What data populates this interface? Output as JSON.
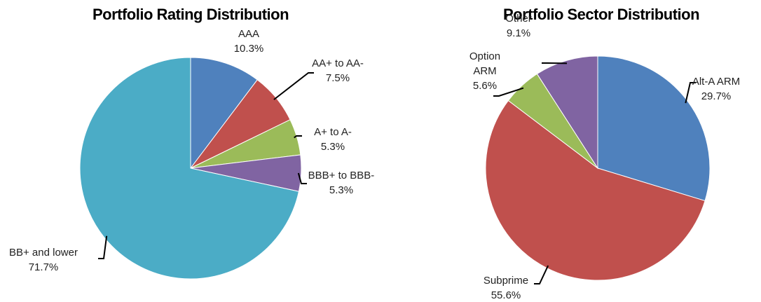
{
  "chart_data": [
    {
      "type": "pie",
      "title": "Portfolio Rating Distribution",
      "categories": [
        "AAA",
        "AA+ to AA-",
        "A+ to A-",
        "BBB+ to BBB-",
        "BB+ and lower"
      ],
      "values": [
        10.3,
        7.5,
        5.3,
        5.3,
        71.7
      ],
      "value_labels": [
        "10.3%",
        "7.5%",
        "5.3%",
        "5.3%",
        "71.7%"
      ],
      "colors": [
        "#4f81bd",
        "#c0504d",
        "#9bbb59",
        "#8064a2",
        "#4bacc6"
      ]
    },
    {
      "type": "pie",
      "title": "Portfolio Sector Distribution",
      "categories": [
        "Alt-A ARM",
        "Subprime",
        "Option ARM",
        "Other"
      ],
      "values": [
        29.7,
        55.6,
        5.6,
        9.1
      ],
      "value_labels": [
        "29.7%",
        "55.6%",
        "5.6%",
        "9.1%"
      ],
      "colors": [
        "#4f81bd",
        "#c0504d",
        "#9bbb59",
        "#8064a2"
      ]
    }
  ]
}
